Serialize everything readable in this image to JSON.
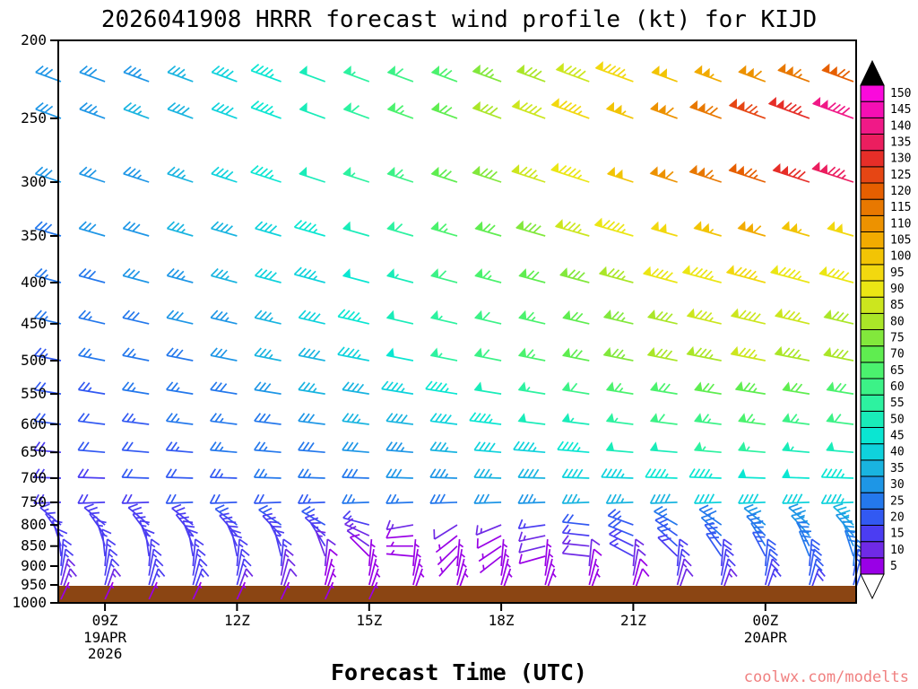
{
  "title": "2026041908 HRRR forecast wind profile (kt) for KIJD",
  "xlabel": "Forecast Time (UTC)",
  "watermark": "coolwx.com/modelts",
  "legend": {
    "values_asc": [
      5,
      10,
      15,
      20,
      25,
      30,
      35,
      40,
      45,
      50,
      55,
      60,
      65,
      70,
      75,
      80,
      85,
      90,
      95,
      100,
      105,
      110,
      115,
      120,
      125,
      130,
      135,
      140,
      145,
      150
    ],
    "colors_asc": [
      "#9900e6",
      "#6f2ae6",
      "#4b3df2",
      "#3259f2",
      "#2478ec",
      "#1e96e6",
      "#19b4e0",
      "#0fd2dc",
      "#0ae6d2",
      "#19ecb9",
      "#2df2a0",
      "#3cf287",
      "#4bf26e",
      "#5fed50",
      "#82e83c",
      "#aae628",
      "#cce61e",
      "#ebe614",
      "#f2d80f",
      "#f2c405",
      "#f2ab00",
      "#ed9200",
      "#e87800",
      "#e65f00",
      "#e64614",
      "#e62e28",
      "#eb1e5f",
      "#f01987",
      "#f50fb4",
      "#fa0adc"
    ],
    "over_color": "#000000",
    "under_color": "#ffffff"
  },
  "terrain": {
    "color": "#8b4513"
  },
  "chart_data": {
    "type": "wind-profile-barbs",
    "model": "HRRR",
    "init": "2026041908",
    "station": "KIJD",
    "units": "kt",
    "pressure_ticks": [
      200,
      250,
      300,
      350,
      400,
      450,
      500,
      550,
      600,
      650,
      700,
      750,
      800,
      850,
      900,
      950,
      1000
    ],
    "pressure_range": [
      200,
      1000
    ],
    "times": [
      "08Z",
      "09Z",
      "10Z",
      "11Z",
      "12Z",
      "13Z",
      "14Z",
      "15Z",
      "16Z",
      "17Z",
      "18Z",
      "19Z",
      "20Z",
      "21Z",
      "22Z",
      "23Z",
      "00Z",
      "01Z",
      "02Z"
    ],
    "time_ticks": [
      {
        "label": "09Z",
        "index": 1,
        "sub": [
          "19APR",
          "2026"
        ]
      },
      {
        "label": "12Z",
        "index": 4,
        "sub": []
      },
      {
        "label": "15Z",
        "index": 7,
        "sub": []
      },
      {
        "label": "18Z",
        "index": 10,
        "sub": []
      },
      {
        "label": "21Z",
        "index": 13,
        "sub": []
      },
      {
        "label": "00Z",
        "index": 16,
        "sub": [
          "20APR"
        ]
      }
    ],
    "levels_hPa": [
      225,
      250,
      300,
      350,
      400,
      450,
      500,
      550,
      600,
      650,
      700,
      750,
      800,
      825,
      850,
      875,
      900,
      925,
      950,
      975,
      1000
    ],
    "barbs": [
      {
        "p": 225,
        "dir": 290,
        "spd": [
          30,
          32,
          34,
          36,
          40,
          45,
          50,
          56,
          62,
          68,
          75,
          82,
          88,
          95,
          100,
          105,
          110,
          116,
          122
        ]
      },
      {
        "p": 250,
        "dir": 290,
        "spd": [
          32,
          34,
          36,
          38,
          42,
          47,
          52,
          58,
          65,
          72,
          80,
          88,
          96,
          104,
          112,
          119,
          126,
          133,
          142
        ]
      },
      {
        "p": 300,
        "dir": 288,
        "spd": [
          30,
          32,
          34,
          36,
          40,
          45,
          50,
          56,
          63,
          70,
          78,
          86,
          94,
          102,
          110,
          117,
          124,
          130,
          136
        ]
      },
      {
        "p": 350,
        "dir": 286,
        "spd": [
          28,
          30,
          32,
          35,
          38,
          42,
          47,
          52,
          58,
          65,
          72,
          79,
          86,
          93,
          99,
          104,
          108,
          104,
          98
        ]
      },
      {
        "p": 400,
        "dir": 285,
        "spd": [
          26,
          28,
          30,
          33,
          36,
          40,
          44,
          48,
          54,
          60,
          66,
          72,
          78,
          84,
          90,
          94,
          97,
          94,
          90
        ]
      },
      {
        "p": 450,
        "dir": 283,
        "spd": [
          25,
          26,
          28,
          31,
          34,
          37,
          41,
          45,
          50,
          55,
          61,
          66,
          71,
          76,
          81,
          85,
          88,
          85,
          81
        ]
      },
      {
        "p": 500,
        "dir": 281,
        "spd": [
          23,
          25,
          27,
          29,
          32,
          35,
          39,
          44,
          49,
          55,
          61,
          67,
          72,
          77,
          81,
          84,
          86,
          83,
          80
        ]
      },
      {
        "p": 550,
        "dir": 279,
        "spd": [
          22,
          23,
          25,
          27,
          29,
          32,
          35,
          39,
          43,
          47,
          52,
          56,
          61,
          65,
          69,
          72,
          74,
          71,
          68
        ]
      },
      {
        "p": 600,
        "dir": 277,
        "spd": [
          20,
          22,
          23,
          25,
          27,
          29,
          32,
          35,
          38,
          42,
          46,
          50,
          54,
          57,
          60,
          63,
          65,
          63,
          60
        ]
      },
      {
        "p": 650,
        "dir": 275,
        "spd": [
          19,
          20,
          22,
          23,
          25,
          27,
          29,
          31,
          34,
          37,
          41,
          44,
          47,
          50,
          52,
          55,
          56,
          54,
          52
        ]
      },
      {
        "p": 700,
        "dir": 272,
        "spd": [
          18,
          19,
          20,
          22,
          23,
          25,
          27,
          29,
          31,
          33,
          36,
          38,
          41,
          43,
          45,
          47,
          49,
          48,
          47
        ]
      },
      {
        "p": 750,
        "dir": 268,
        "spd": [
          18,
          18,
          19,
          20,
          21,
          22,
          24,
          25,
          27,
          29,
          31,
          33,
          35,
          36,
          38,
          40,
          41,
          42,
          43
        ]
      },
      {
        "p": 800,
        "dir": [
          310,
          310,
          310,
          308,
          306,
          304,
          300,
          285,
          260,
          238,
          248,
          262,
          276,
          290,
          300,
          305,
          308,
          310,
          312
        ],
        "spd": [
          17,
          18,
          18,
          19,
          20,
          20,
          21,
          17,
          13,
          10,
          13,
          16,
          20,
          23,
          26,
          29,
          31,
          33,
          35
        ]
      },
      {
        "p": 825,
        "dir": [
          325,
          325,
          323,
          321,
          319,
          317,
          312,
          295,
          265,
          232,
          242,
          258,
          276,
          292,
          305,
          312,
          316,
          318,
          320
        ],
        "spd": [
          17,
          17,
          18,
          18,
          19,
          19,
          18,
          13,
          9,
          7,
          9,
          13,
          17,
          20,
          23,
          26,
          28,
          30,
          32
        ]
      },
      {
        "p": 850,
        "dir": [
          342,
          342,
          340,
          338,
          336,
          334,
          328,
          305,
          270,
          226,
          236,
          256,
          276,
          296,
          312,
          322,
          328,
          332,
          336
        ],
        "spd": [
          16,
          17,
          17,
          18,
          18,
          18,
          16,
          10,
          7,
          5,
          7,
          10,
          14,
          18,
          21,
          24,
          26,
          28,
          30
        ]
      },
      {
        "p": 875,
        "dir": [
          354,
          354,
          352,
          350,
          348,
          346,
          340,
          315,
          275,
          222,
          232,
          254,
          276,
          298,
          314,
          326,
          332,
          338,
          342
        ],
        "spd": [
          16,
          16,
          17,
          17,
          18,
          17,
          13,
          8,
          5,
          5,
          5,
          8,
          12,
          15,
          19,
          21,
          24,
          26,
          28
        ]
      },
      {
        "p": 900,
        "dir": 5,
        "spd": [
          15,
          16,
          16,
          17,
          17,
          15,
          11,
          6,
          5,
          5,
          5,
          7,
          10,
          13,
          17,
          19,
          22,
          24,
          26
        ]
      },
      {
        "p": 925,
        "dir": 10,
        "spd": [
          15,
          15,
          16,
          16,
          16,
          13,
          9,
          5,
          5,
          5,
          5,
          5,
          8,
          11,
          15,
          17,
          20,
          22,
          24
        ]
      },
      {
        "p": 950,
        "dir": 15,
        "spd": [
          14,
          15,
          15,
          16,
          15,
          11,
          7,
          5,
          5,
          5,
          5,
          5,
          6,
          9,
          13,
          15,
          18,
          20,
          22
        ]
      },
      {
        "p": 975,
        "dir": 20,
        "spd": [
          14,
          14,
          15,
          15,
          14,
          10,
          6,
          5,
          5,
          5,
          5,
          5,
          5,
          8,
          11,
          14,
          16,
          18,
          20
        ]
      },
      {
        "p": 1000,
        "dir": 25,
        "spd": [
          5,
          6,
          6,
          5,
          5,
          6,
          5,
          5,
          null,
          null,
          null,
          null,
          null,
          null,
          null,
          null,
          null,
          null,
          null
        ]
      }
    ]
  }
}
